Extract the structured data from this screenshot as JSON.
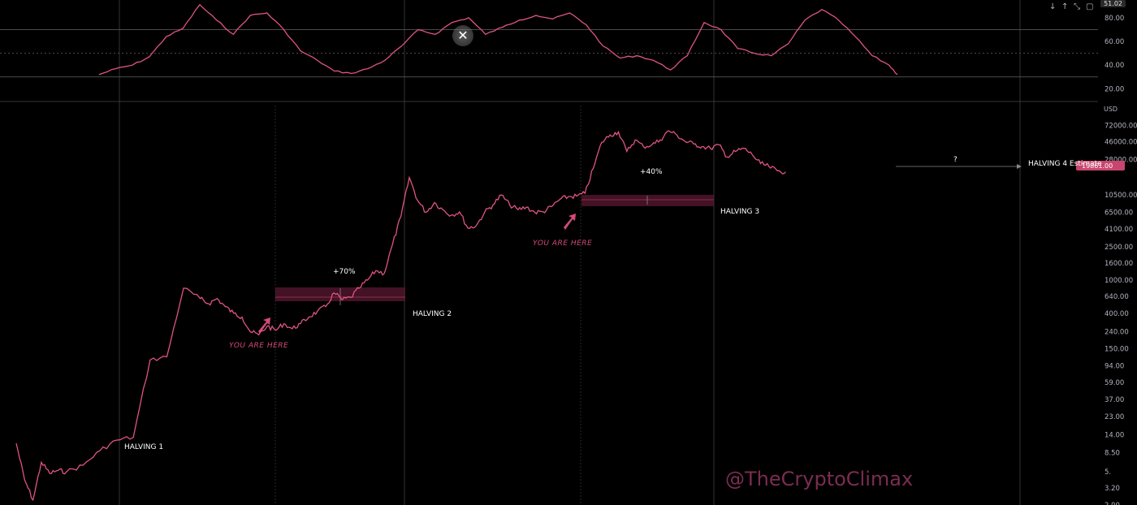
{
  "header": {
    "controls": [
      "↓",
      "↑",
      "⤡",
      "▢"
    ],
    "rsi_value": "51.02",
    "close_label": "✕",
    "currency_label": "USD"
  },
  "colors": {
    "line": "#e0557f",
    "grid": "#2a2a2a",
    "vline": "#555555",
    "band": "#6b1d36",
    "price_tag": "#c8456f"
  },
  "watermark": "@TheCryptoClimax",
  "annotations": {
    "halving_1": "HALVING 1",
    "halving_2": "HALVING 2",
    "halving_3": "HALVING 3",
    "halving_4": "HALVING 4 Estimate",
    "pct_70": "+70%",
    "pct_40": "+40%",
    "question": "?",
    "you_are_here_1": "YOU ARE HERE",
    "you_are_here_2": "YOU ARE HERE"
  },
  "current_price": "19861.00",
  "chart_data": [
    {
      "type": "line",
      "panel": "oscillator",
      "ylim": [
        10,
        95
      ],
      "y_ticks": [
        20,
        40,
        60,
        80
      ],
      "y_tick_labels": [
        "20.00",
        "40.00",
        "60.00",
        "80.00"
      ],
      "levels": [
        30,
        50,
        70
      ],
      "x": [
        0.05,
        0.07,
        0.09,
        0.11,
        0.13,
        0.15,
        0.17,
        0.19,
        0.21,
        0.23,
        0.25,
        0.27,
        0.29,
        0.31,
        0.33,
        0.35,
        0.37,
        0.39,
        0.41,
        0.43,
        0.45,
        0.47,
        0.49,
        0.51,
        0.53,
        0.55,
        0.57,
        0.59,
        0.61,
        0.63,
        0.65,
        0.67,
        0.69,
        0.71,
        0.73,
        0.75,
        0.77,
        0.79,
        0.81,
        0.83,
        0.85,
        0.87,
        0.89,
        0.91,
        0.93,
        0.95,
        0.97,
        0.99,
        1.0
      ],
      "values": [
        32,
        37,
        40,
        47,
        64,
        71,
        91,
        78,
        66,
        82,
        84,
        70,
        52,
        44,
        35,
        33,
        37,
        44,
        56,
        70,
        66,
        76,
        80,
        66,
        72,
        78,
        82,
        79,
        84,
        74,
        56,
        46,
        48,
        44,
        36,
        48,
        76,
        70,
        54,
        50,
        48,
        58,
        78,
        87,
        78,
        64,
        48,
        40,
        32
      ]
    },
    {
      "type": "line",
      "panel": "price",
      "yscale": "log",
      "ylim": [
        2,
        130000
      ],
      "y_ticks": [
        2,
        3.2,
        5,
        8.5,
        14,
        23,
        37,
        59,
        94,
        150,
        240,
        400,
        640,
        1000,
        1600,
        2500,
        4100,
        6500,
        10500,
        17000,
        28000,
        46000,
        72000
      ],
      "y_tick_labels": [
        "2.00",
        "3.20",
        "5.",
        "8.50",
        "14.00",
        "23.00",
        "37.00",
        "59.00",
        "94.00",
        "150.00",
        "240.00",
        "400.00",
        "640.00",
        "1000.00",
        "1600.00",
        "2500.00",
        "4100.00",
        "6500.00",
        "10500.00",
        "",
        "28000.00",
        "46000.00",
        "72000.00"
      ],
      "x": [
        0,
        0.01,
        0.02,
        0.03,
        0.04,
        0.05,
        0.06,
        0.08,
        0.1,
        0.12,
        0.14,
        0.16,
        0.18,
        0.2,
        0.22,
        0.23,
        0.24,
        0.25,
        0.26,
        0.27,
        0.28,
        0.29,
        0.3,
        0.31,
        0.32,
        0.33,
        0.34,
        0.35,
        0.36,
        0.37,
        0.38,
        0.39,
        0.4,
        0.41,
        0.42,
        0.43,
        0.44,
        0.45,
        0.46,
        0.47,
        0.48,
        0.49,
        0.5,
        0.51,
        0.52,
        0.53,
        0.54,
        0.55,
        0.56,
        0.57,
        0.58,
        0.59,
        0.6,
        0.61,
        0.62,
        0.63,
        0.64,
        0.65,
        0.66,
        0.67,
        0.68,
        0.69,
        0.7,
        0.71,
        0.72,
        0.73,
        0.74,
        0.75,
        0.76,
        0.77,
        0.78,
        0.79,
        0.8,
        0.81,
        0.82,
        0.83,
        0.84,
        0.85,
        0.86,
        0.87,
        0.88,
        0.89,
        0.9,
        0.91,
        0.92,
        0.93,
        0.94,
        0.95,
        0.96,
        0.97,
        0.98,
        0.99,
        1.0
      ],
      "values": [
        11,
        4,
        2.3,
        6.5,
        4.8,
        5.2,
        5,
        6,
        9,
        12,
        13,
        110,
        120,
        800,
        600,
        520,
        600,
        480,
        400,
        360,
        240,
        220,
        280,
        250,
        300,
        260,
        300,
        360,
        420,
        480,
        700,
        580,
        620,
        800,
        1000,
        1300,
        1200,
        2700,
        5800,
        17000,
        9000,
        6500,
        8500,
        7000,
        6000,
        6600,
        4200,
        4500,
        6500,
        8000,
        10500,
        8000,
        7000,
        7500,
        6500,
        6600,
        7600,
        9300,
        10000,
        10200,
        11000,
        22000,
        45000,
        55000,
        60000,
        35000,
        48000,
        40000,
        42000,
        48000,
        62000,
        55000,
        46000,
        43000,
        40000,
        38000,
        42000,
        30000,
        35000,
        38000,
        32000,
        25000,
        23000,
        20500,
        19861,
        19861,
        19861,
        19861,
        19861,
        19861,
        19861,
        19861,
        19861
      ]
    }
  ]
}
